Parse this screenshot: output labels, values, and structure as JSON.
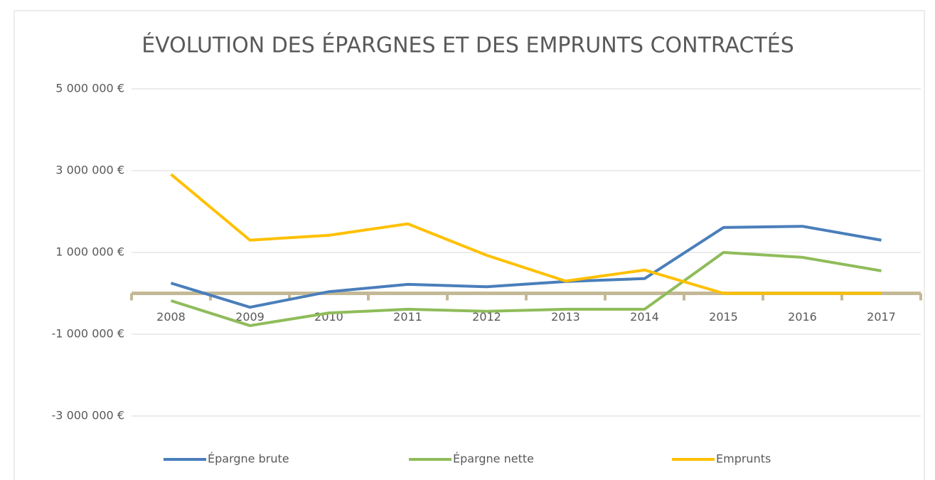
{
  "chart_data": {
    "type": "line",
    "title": "ÉVOLUTION DES ÉPARGNES ET DES EMPRUNTS CONTRACTÉS",
    "categories": [
      "2008",
      "2009",
      "2010",
      "2011",
      "2012",
      "2013",
      "2014",
      "2015",
      "2016",
      "2017"
    ],
    "series": [
      {
        "name": "Épargne brute",
        "color": "#4a7ebb",
        "values": [
          250000,
          -340000,
          40000,
          220000,
          160000,
          290000,
          360000,
          1610000,
          1640000,
          1300000
        ]
      },
      {
        "name": "Épargne nette",
        "color": "#8fbc5a",
        "values": [
          -180000,
          -790000,
          -480000,
          -390000,
          -440000,
          -390000,
          -390000,
          1000000,
          880000,
          550000
        ]
      },
      {
        "name": "Emprunts",
        "color": "#ffc000",
        "values": [
          2910000,
          1300000,
          1420000,
          1700000,
          930000,
          300000,
          570000,
          0,
          0,
          0
        ]
      }
    ],
    "ylim": [
      -3000000,
      5000000
    ],
    "yticks": [
      {
        "value": -3000000,
        "label": "-3 000 000 €"
      },
      {
        "value": -1000000,
        "label": "-1 000 000 €"
      },
      {
        "value": 1000000,
        "label": "1 000 000 €"
      },
      {
        "value": 3000000,
        "label": "3 000 000 €"
      },
      {
        "value": 5000000,
        "label": "5 000 000 €"
      }
    ],
    "grid": true,
    "legend": "bottom"
  }
}
